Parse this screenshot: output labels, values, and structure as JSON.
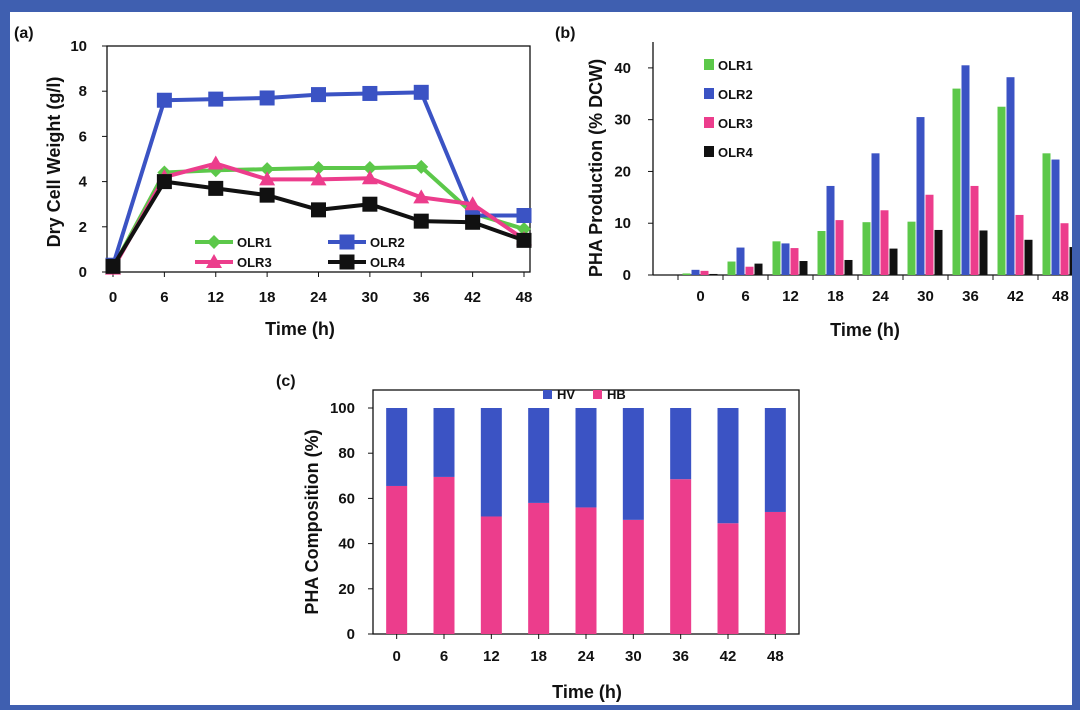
{
  "colors": {
    "OLR1": "#5cc84a",
    "OLR2": "#3b53c4",
    "OLR3": "#ec3d8c",
    "OLR4": "#111111",
    "HV": "#3b53c4",
    "HB": "#ec3d8c",
    "border_frame": "#3f5fb0"
  },
  "chart_data": [
    {
      "panel_label": "(a)",
      "type": "line",
      "x": [
        0,
        6,
        12,
        18,
        24,
        30,
        36,
        42,
        48
      ],
      "xlabel": "Time (h)",
      "ylabel": "Dry Cell Weight (g/l)",
      "ylim": [
        0,
        10
      ],
      "yticks": [
        0,
        2,
        4,
        6,
        8,
        10
      ],
      "legend": "bottom, two columns",
      "series": [
        {
          "name": "OLR1",
          "marker": "diamond",
          "values": [
            0.2,
            4.4,
            4.5,
            4.55,
            4.6,
            4.6,
            4.65,
            2.6,
            1.9
          ]
        },
        {
          "name": "OLR2",
          "marker": "square",
          "values": [
            0.3,
            7.6,
            7.65,
            7.7,
            7.85,
            7.9,
            7.95,
            2.5,
            2.5
          ]
        },
        {
          "name": "OLR3",
          "marker": "triangle",
          "values": [
            0.15,
            4.2,
            4.8,
            4.1,
            4.1,
            4.15,
            3.3,
            3.0,
            1.45
          ]
        },
        {
          "name": "OLR4",
          "marker": "square",
          "values": [
            0.25,
            4.0,
            3.7,
            3.4,
            2.75,
            3.0,
            2.25,
            2.2,
            1.4
          ]
        }
      ]
    },
    {
      "panel_label": "(b)",
      "type": "bar",
      "categories": [
        "0",
        "6",
        "12",
        "18",
        "24",
        "30",
        "36",
        "42",
        "48"
      ],
      "xlabel": "Time (h)",
      "ylabel": "PHA Production (% DCW)",
      "ylim": [
        0,
        45
      ],
      "yticks": [
        0,
        10,
        20,
        30,
        40
      ],
      "legend": "top-left",
      "series": [
        {
          "name": "OLR1",
          "values": [
            0.3,
            2.6,
            6.5,
            8.5,
            10.2,
            10.3,
            36.0,
            32.5,
            23.5
          ]
        },
        {
          "name": "OLR2",
          "values": [
            1.0,
            5.3,
            6.1,
            17.2,
            23.5,
            30.5,
            40.5,
            38.2,
            22.3
          ]
        },
        {
          "name": "OLR3",
          "values": [
            0.8,
            1.6,
            5.2,
            10.6,
            12.5,
            15.5,
            17.2,
            11.6,
            10.0
          ]
        },
        {
          "name": "OLR4",
          "values": [
            0.2,
            2.2,
            2.7,
            2.9,
            5.1,
            8.7,
            8.6,
            6.8,
            5.4
          ]
        }
      ]
    },
    {
      "panel_label": "(c)",
      "type": "bar",
      "stacked": true,
      "categories": [
        "0",
        "6",
        "12",
        "18",
        "24",
        "30",
        "36",
        "42",
        "48"
      ],
      "xlabel": "Time (h)",
      "ylabel": "PHA Composition (%)",
      "ylim": [
        0,
        100
      ],
      "yticks": [
        0,
        20,
        40,
        60,
        80,
        100
      ],
      "legend": "top-center",
      "series": [
        {
          "name": "HB",
          "values": [
            65.5,
            69.5,
            52,
            58,
            56,
            50.5,
            68.5,
            49,
            54
          ]
        },
        {
          "name": "HV",
          "values": [
            34.5,
            30.5,
            48,
            42,
            44,
            49.5,
            31.5,
            51,
            46
          ]
        }
      ]
    }
  ]
}
